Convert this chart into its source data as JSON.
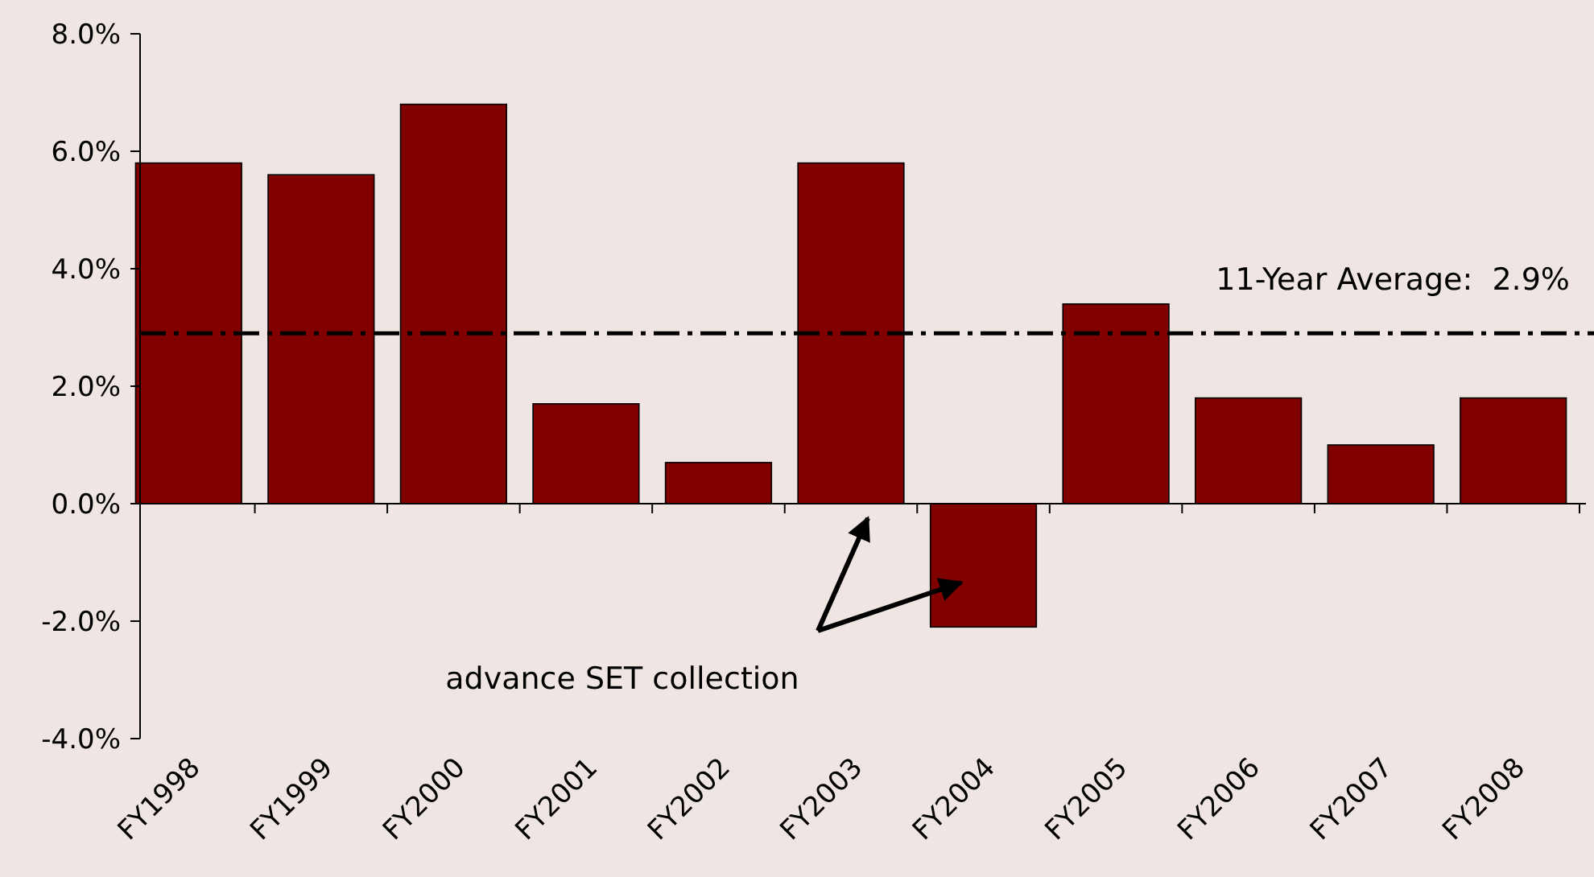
{
  "chart_data": {
    "type": "bar",
    "categories": [
      "FY1998",
      "FY1999",
      "FY2000",
      "FY2001",
      "FY2002",
      "FY2003",
      "FY2004",
      "FY2005",
      "FY2006",
      "FY2007",
      "FY2008"
    ],
    "values": [
      5.8,
      5.6,
      6.8,
      1.7,
      0.7,
      5.8,
      -2.1,
      3.4,
      1.8,
      1.0,
      1.8
    ],
    "color": "#800000",
    "ylim": [
      -4,
      8
    ],
    "yticks": [
      {
        "value": -4,
        "label": "-4.0%"
      },
      {
        "value": -2,
        "label": "-2.0%"
      },
      {
        "value": 0,
        "label": "0.0%"
      },
      {
        "value": 2,
        "label": "2.0%"
      },
      {
        "value": 4,
        "label": "4.0%"
      },
      {
        "value": 6,
        "label": "6.0%"
      },
      {
        "value": 8,
        "label": "8.0%"
      }
    ],
    "ref_lines": [
      {
        "axis": "y",
        "value": 2.9,
        "label": "11-Year Average:  2.9%",
        "color": "#000000",
        "line_style": "dashdot"
      }
    ],
    "annotations": [
      "advance SET collection"
    ]
  }
}
